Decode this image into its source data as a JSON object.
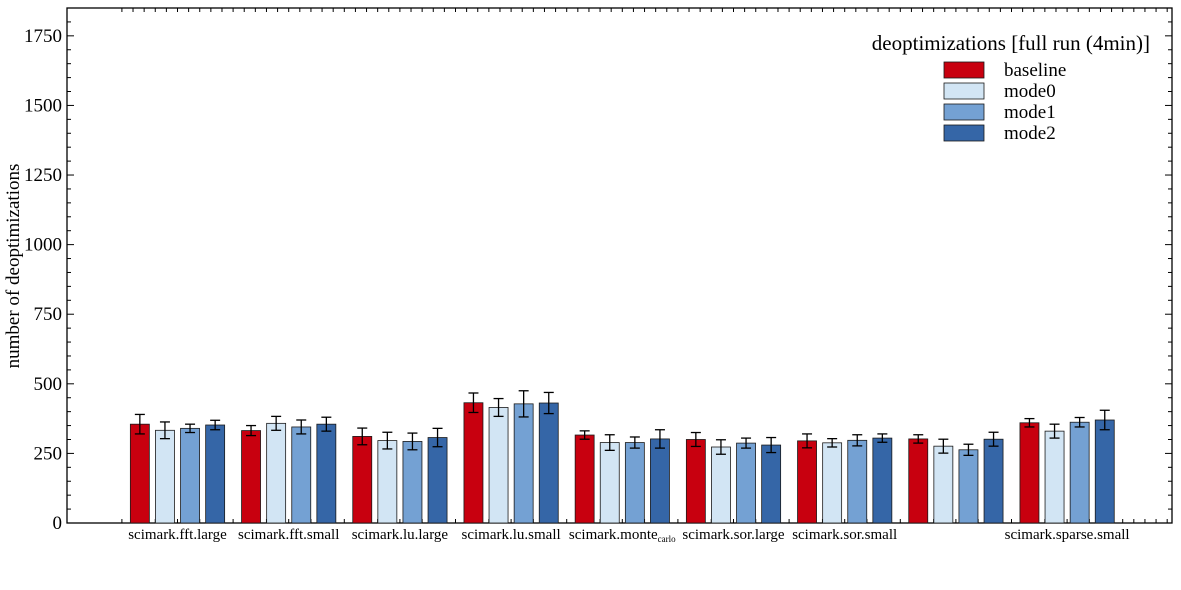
{
  "chart_data": {
    "type": "bar",
    "ylabel": "number of deoptimizations",
    "xlabel": "",
    "ylim": [
      0,
      1850
    ],
    "yticks": [
      0,
      250,
      500,
      750,
      1000,
      1250,
      1500,
      1750
    ],
    "grid": false,
    "legend": {
      "title": "deoptimizations [full run (4min)]",
      "placement": "top-right"
    },
    "categories": [
      {
        "label": "scimark.fft.large",
        "sub": ""
      },
      {
        "label": "scimark.fft.small",
        "sub": ""
      },
      {
        "label": "scimark.lu.large",
        "sub": ""
      },
      {
        "label": "scimark.lu.small",
        "sub": ""
      },
      {
        "label": "scimark.monte",
        "sub": "carlo"
      },
      {
        "label": "scimark.sor.large",
        "sub": ""
      },
      {
        "label": "scimark.sor.small",
        "sub": ""
      },
      {
        "label": "",
        "sub": ""
      },
      {
        "label": "scimark.sparse.small",
        "sub": ""
      }
    ],
    "series": [
      {
        "name": "baseline",
        "color": "#c8000f",
        "values": [
          355,
          332,
          311,
          432,
          316,
          300,
          295,
          302,
          360
        ],
        "errors": [
          35,
          18,
          30,
          35,
          15,
          25,
          25,
          15,
          15
        ]
      },
      {
        "name": "mode0",
        "color": "#d2e5f4",
        "values": [
          333,
          358,
          296,
          415,
          289,
          273,
          288,
          276,
          330
        ],
        "errors": [
          30,
          25,
          30,
          32,
          28,
          26,
          15,
          25,
          25
        ]
      },
      {
        "name": "mode1",
        "color": "#74a1d3",
        "values": [
          340,
          345,
          293,
          428,
          289,
          287,
          297,
          263,
          362
        ],
        "errors": [
          15,
          25,
          30,
          47,
          20,
          18,
          20,
          20,
          17
        ]
      },
      {
        "name": "mode2",
        "color": "#3566a7",
        "values": [
          352,
          355,
          307,
          431,
          302,
          280,
          305,
          301,
          370
        ],
        "errors": [
          17,
          25,
          33,
          38,
          33,
          27,
          15,
          25,
          35
        ]
      }
    ]
  }
}
